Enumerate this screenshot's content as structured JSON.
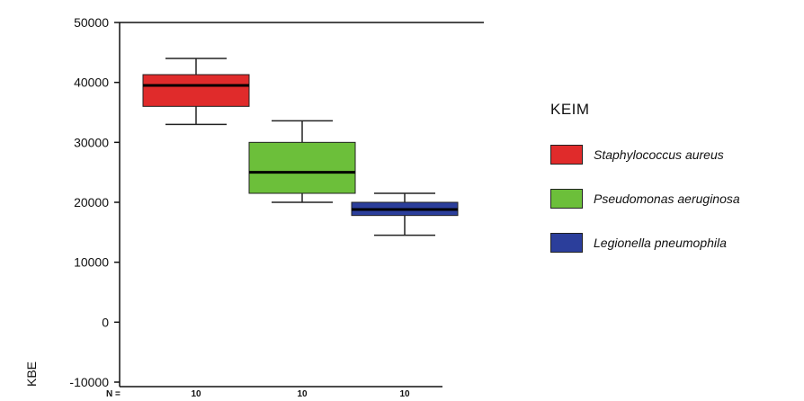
{
  "chart_data": {
    "type": "box",
    "ylabel": "KBE",
    "ylim": [
      -10000,
      50000
    ],
    "yticks": [
      -10000,
      0,
      10000,
      20000,
      30000,
      40000,
      50000
    ],
    "n_prefix": "N =",
    "legend_title": "KEIM",
    "legend_position": "right",
    "grid": false,
    "series": [
      {
        "name": "Staphylococcus aureus",
        "color": "#e02b2b",
        "n": "10",
        "min": 33000,
        "q1": 36000,
        "median": 39500,
        "q3": 41300,
        "max": 44000
      },
      {
        "name": "Pseudomonas aeruginosa",
        "color": "#6cbf3a",
        "n": "10",
        "min": 20000,
        "q1": 21500,
        "median": 25000,
        "q3": 30000,
        "max": 33600
      },
      {
        "name": "Legionella pneumophila",
        "color": "#2b3e9b",
        "n": "10",
        "min": 14500,
        "q1": 17800,
        "median": 18800,
        "q3": 20000,
        "max": 21500
      }
    ]
  }
}
